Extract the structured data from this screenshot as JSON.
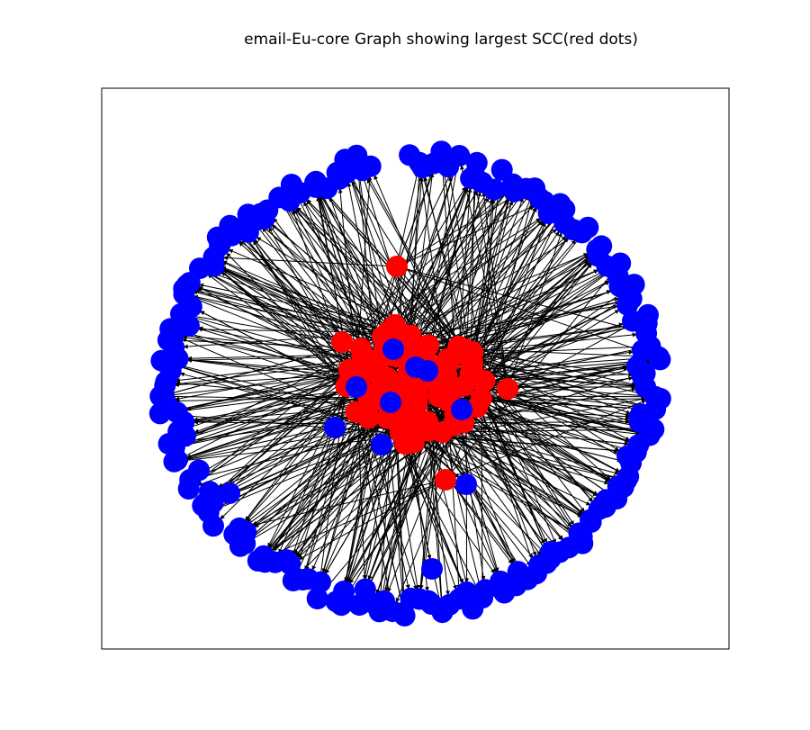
{
  "figure": {
    "title": "email-Eu-core Graph showing largest SCC(red dots)"
  },
  "graph": {
    "layout": "spring",
    "directed": true,
    "frame": true,
    "scc_color": "#ff0000",
    "other_color": "#0000ff",
    "edge_color": "#000000"
  }
}
